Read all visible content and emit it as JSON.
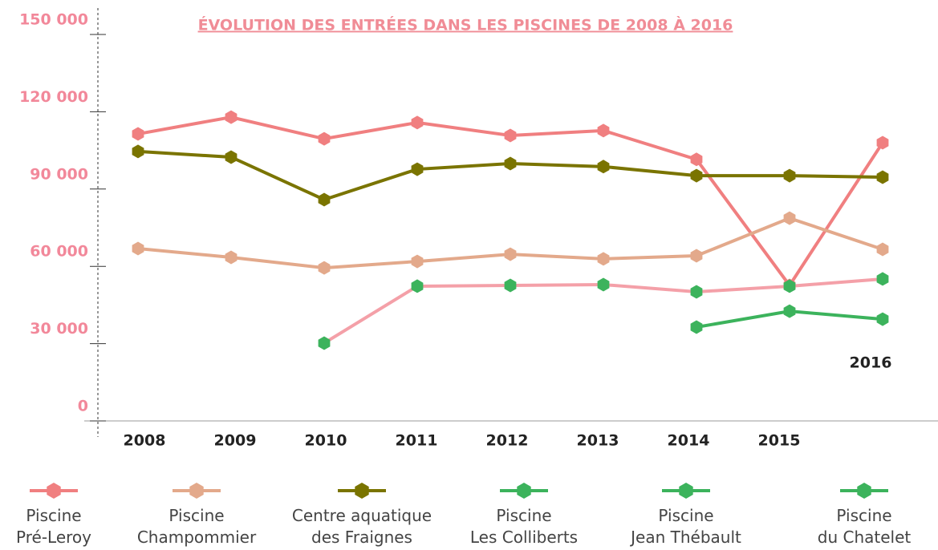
{
  "chart_data": {
    "type": "line",
    "title": "ÉVOLUTION DES ENTRÉES DANS LES PISCINES DE 2008 À 2016",
    "categories": [
      "2008",
      "2009",
      "2010",
      "2011",
      "2012",
      "2013",
      "2014",
      "2015",
      "2016"
    ],
    "series": [
      {
        "name": "Piscine\nPré-Leroy",
        "color": "#f07f80",
        "marker_color": "#f07f80",
        "values": [
          111400,
          117900,
          109500,
          115800,
          110800,
          112700,
          101500,
          52600,
          108000
        ]
      },
      {
        "name": "Piscine\nChampommier",
        "color": "#e3a98b",
        "marker_color": "#e3a98b",
        "values": [
          66900,
          63500,
          59400,
          61900,
          64700,
          62900,
          64100,
          78700,
          66600
        ]
      },
      {
        "name": "Centre aquatique\ndes Fraignes",
        "color": "#7a7400",
        "marker_color": "#7a7400",
        "values": [
          104600,
          102400,
          85900,
          97700,
          99900,
          98700,
          95200,
          95200,
          94600
        ]
      },
      {
        "name": "Piscine\nLes Colliberts",
        "color": "#f4a0a8",
        "marker_color": "#3cb35c",
        "values": [
          null,
          null,
          30200,
          52300,
          52600,
          52900,
          50100,
          52300,
          55100
        ]
      },
      {
        "name": "Piscine\nJean Thébault",
        "color": "#3cb35c",
        "marker_color": "#3cb35c",
        "values": [
          null,
          null,
          null,
          null,
          null,
          null,
          36400,
          42600,
          39500
        ]
      },
      {
        "name": "Piscine\ndu Chatelet",
        "color": "#3cb35c",
        "marker_color": "#3cb35c",
        "values": [
          null,
          null,
          null,
          null,
          null,
          null,
          null,
          null,
          null
        ]
      }
    ],
    "ylim": [
      0,
      150000
    ],
    "yticks": [
      0,
      {
        "value": 30000,
        "label": "30 000"
      },
      {
        "value": 60000,
        "label": "60 000"
      },
      {
        "value": 90000,
        "label": "90 000"
      },
      {
        "value": 120000,
        "label": "120 000"
      },
      {
        "value": 150000,
        "label": "150 000"
      }
    ]
  }
}
